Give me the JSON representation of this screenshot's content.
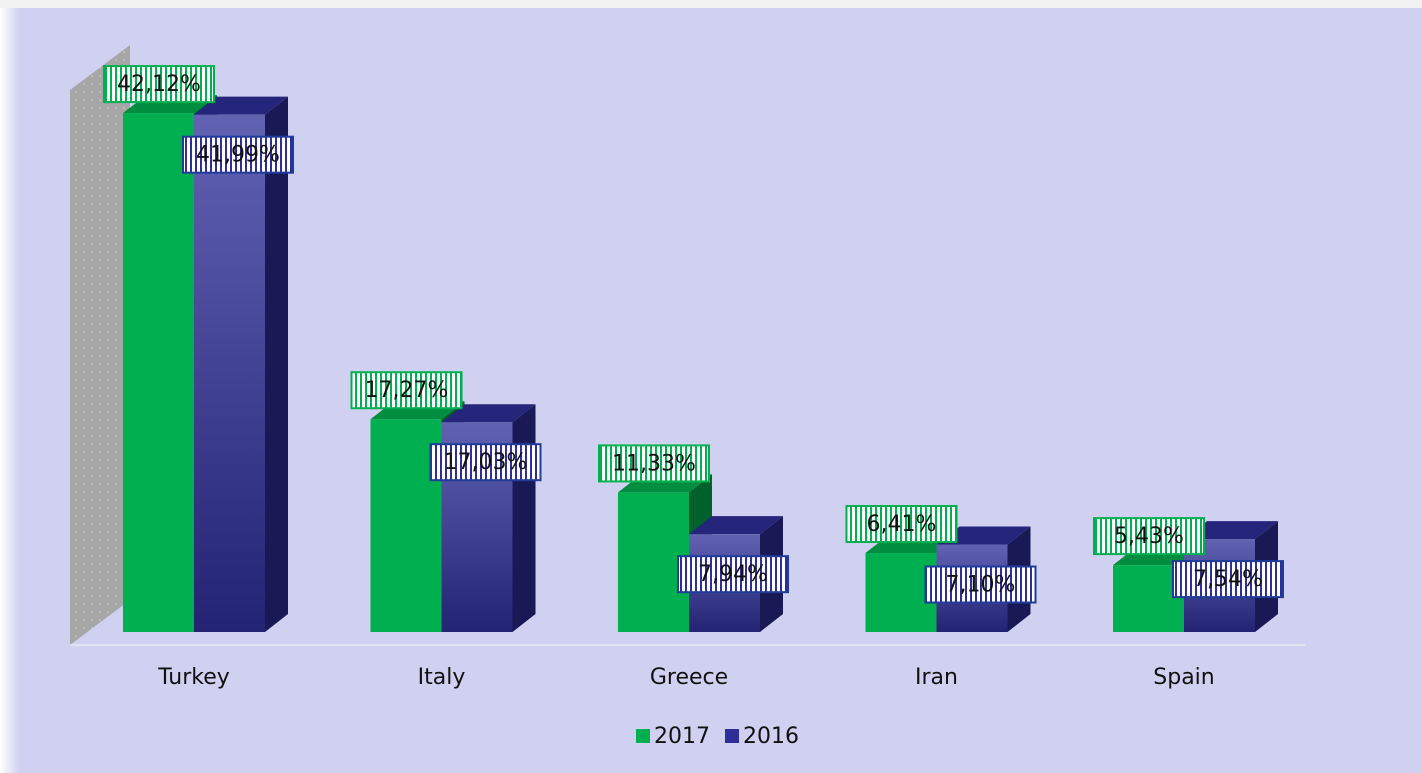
{
  "chart_data": {
    "type": "bar3d",
    "categories": [
      "Turkey",
      "Italy",
      "Greece",
      "Iran",
      "Spain"
    ],
    "series": [
      {
        "name": "2017",
        "color": "#00b050",
        "values": [
          42.12,
          17.27,
          11.33,
          6.41,
          5.43
        ],
        "value_labels": [
          "42,12%",
          "17,27%",
          "11,33%",
          "6,41%",
          "5,43%"
        ]
      },
      {
        "name": "2016",
        "color": "#2e2e9a",
        "values": [
          41.99,
          17.03,
          7.94,
          7.1,
          7.54
        ],
        "value_labels": [
          "41,99%",
          "17,03%",
          "7,94%",
          "7,10%",
          "7,54%"
        ]
      }
    ],
    "legend": "bottom"
  }
}
